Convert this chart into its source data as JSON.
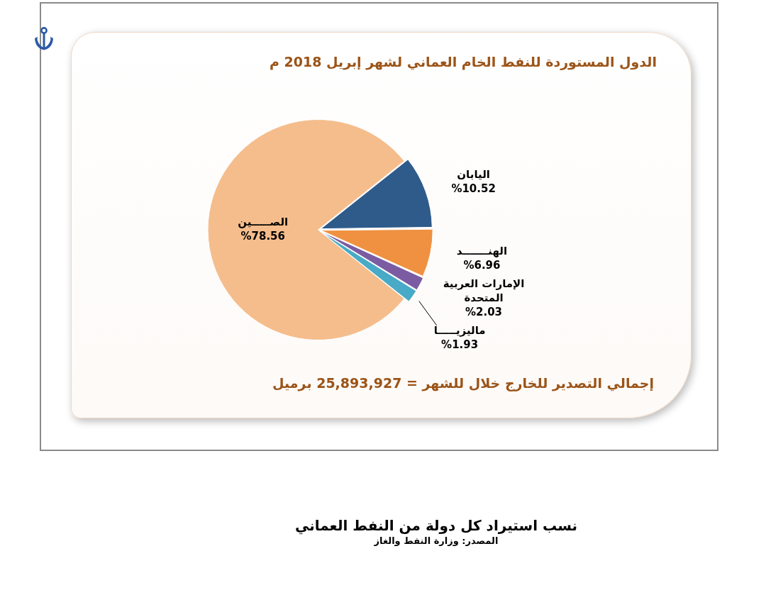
{
  "chart_data": {
    "type": "pie",
    "title": "الدول المستوردة للنفط الخام العماني لشهر إبريل 2018 م",
    "categories": [
      "الصـــــين",
      "اليابان",
      "الهنـــــــد",
      "الإمارات العربية المتحدة",
      "ماليزيـــــا"
    ],
    "values": [
      78.56,
      10.52,
      6.96,
      2.03,
      1.93
    ],
    "value_labels": [
      "%78.56",
      "%10.52",
      "%6.96",
      "%2.03",
      "%1.93"
    ],
    "colors": [
      "#f5bd8c",
      "#2f5b8b",
      "#ef9141",
      "#7b5ca3",
      "#48aac6"
    ],
    "annotations": [
      "إجمالي التصدير للخارج خلال للشهر = 25,893,927 برميل",
      "نسب استيراد كل دولة من النفط العماني",
      "المصدر: وزارة النفط والغاز"
    ]
  }
}
